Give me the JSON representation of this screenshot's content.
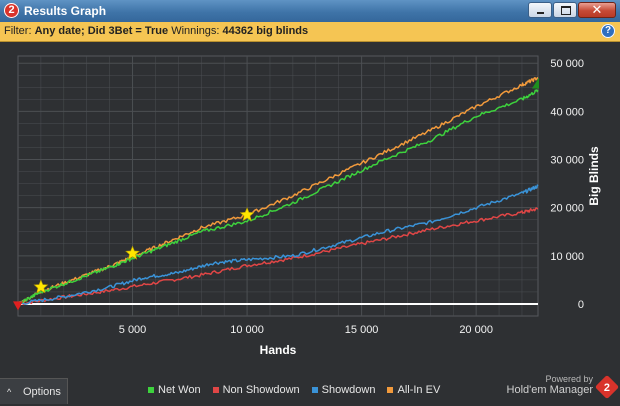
{
  "window": {
    "title": "Results Graph",
    "app_badge": "2"
  },
  "filter": {
    "label": "Filter:",
    "value": "Any date; Did 3Bet = True",
    "winnings_label": "Winnings:",
    "winnings_value": "44362 big blinds",
    "help_glyph": "?"
  },
  "options": {
    "caret": "^",
    "label": "Options"
  },
  "brand": {
    "powered": "Powered by",
    "name": "Hold'em Manager",
    "badge": "2"
  },
  "colors": {
    "net_won": "#3dd23d",
    "non_showdown": "#e04646",
    "showdown": "#3a93d8",
    "all_in_ev": "#f29a3c",
    "zero_line": "#ffffff",
    "background": "#2e3033",
    "grid": "#4c4f53"
  },
  "chart_data": {
    "type": "line",
    "xlabel": "Hands",
    "ylabel": "Big Blinds",
    "xlim": [
      0,
      22700
    ],
    "ylim": [
      -2500,
      51500
    ],
    "x_ticks": [
      5000,
      10000,
      15000,
      20000
    ],
    "x_tick_labels": [
      "5 000",
      "10 000",
      "15 000",
      "20 000"
    ],
    "y_ticks": [
      0,
      10000,
      20000,
      30000,
      40000,
      50000
    ],
    "y_tick_labels": [
      "0",
      "10 000",
      "20 000",
      "30 000",
      "40 000",
      "50 000"
    ],
    "grid": true,
    "legend_position": "bottom",
    "series": [
      {
        "name": "Net Won",
        "x": [
          0,
          1000,
          2500,
          4000,
          5000,
          6500,
          8000,
          10000,
          12000,
          14000,
          16000,
          18000,
          20000,
          22000,
          22700
        ],
        "values": [
          0,
          2500,
          5000,
          7600,
          9500,
          12200,
          15000,
          17200,
          21000,
          25500,
          30000,
          34000,
          39000,
          42500,
          44400
        ]
      },
      {
        "name": "Non Showdown",
        "x": [
          0,
          2000,
          4000,
          6000,
          8000,
          10000,
          12000,
          14000,
          16000,
          18000,
          20000,
          22000,
          22700
        ],
        "values": [
          0,
          1400,
          2800,
          4400,
          6000,
          8000,
          9500,
          11500,
          13500,
          15500,
          17300,
          19000,
          19800
        ]
      },
      {
        "name": "Showdown",
        "x": [
          0,
          2000,
          4000,
          5500,
          7000,
          8500,
          10000,
          12000,
          14000,
          16000,
          18000,
          20000,
          22000,
          22700
        ],
        "values": [
          0,
          1500,
          3500,
          5500,
          6500,
          8500,
          9200,
          10000,
          12500,
          15000,
          17000,
          20000,
          23000,
          24500
        ]
      },
      {
        "name": "All-In EV",
        "x": [
          0,
          1000,
          2500,
          4000,
          5000,
          6500,
          8000,
          10000,
          12000,
          14000,
          16000,
          18000,
          20000,
          22000,
          22700
        ],
        "values": [
          0,
          2600,
          5200,
          7800,
          9800,
          12800,
          15800,
          18500,
          22500,
          27000,
          31500,
          36000,
          41000,
          45500,
          47000
        ]
      }
    ],
    "markers": [
      {
        "type": "star",
        "x": 1000,
        "y": 3500
      },
      {
        "type": "star",
        "x": 5000,
        "y": 10500
      },
      {
        "type": "star",
        "x": 10000,
        "y": 18500
      },
      {
        "type": "triangle-down",
        "x": 0,
        "y": -500
      },
      {
        "type": "triangle-up",
        "x": 22700,
        "y": 45800
      }
    ]
  }
}
